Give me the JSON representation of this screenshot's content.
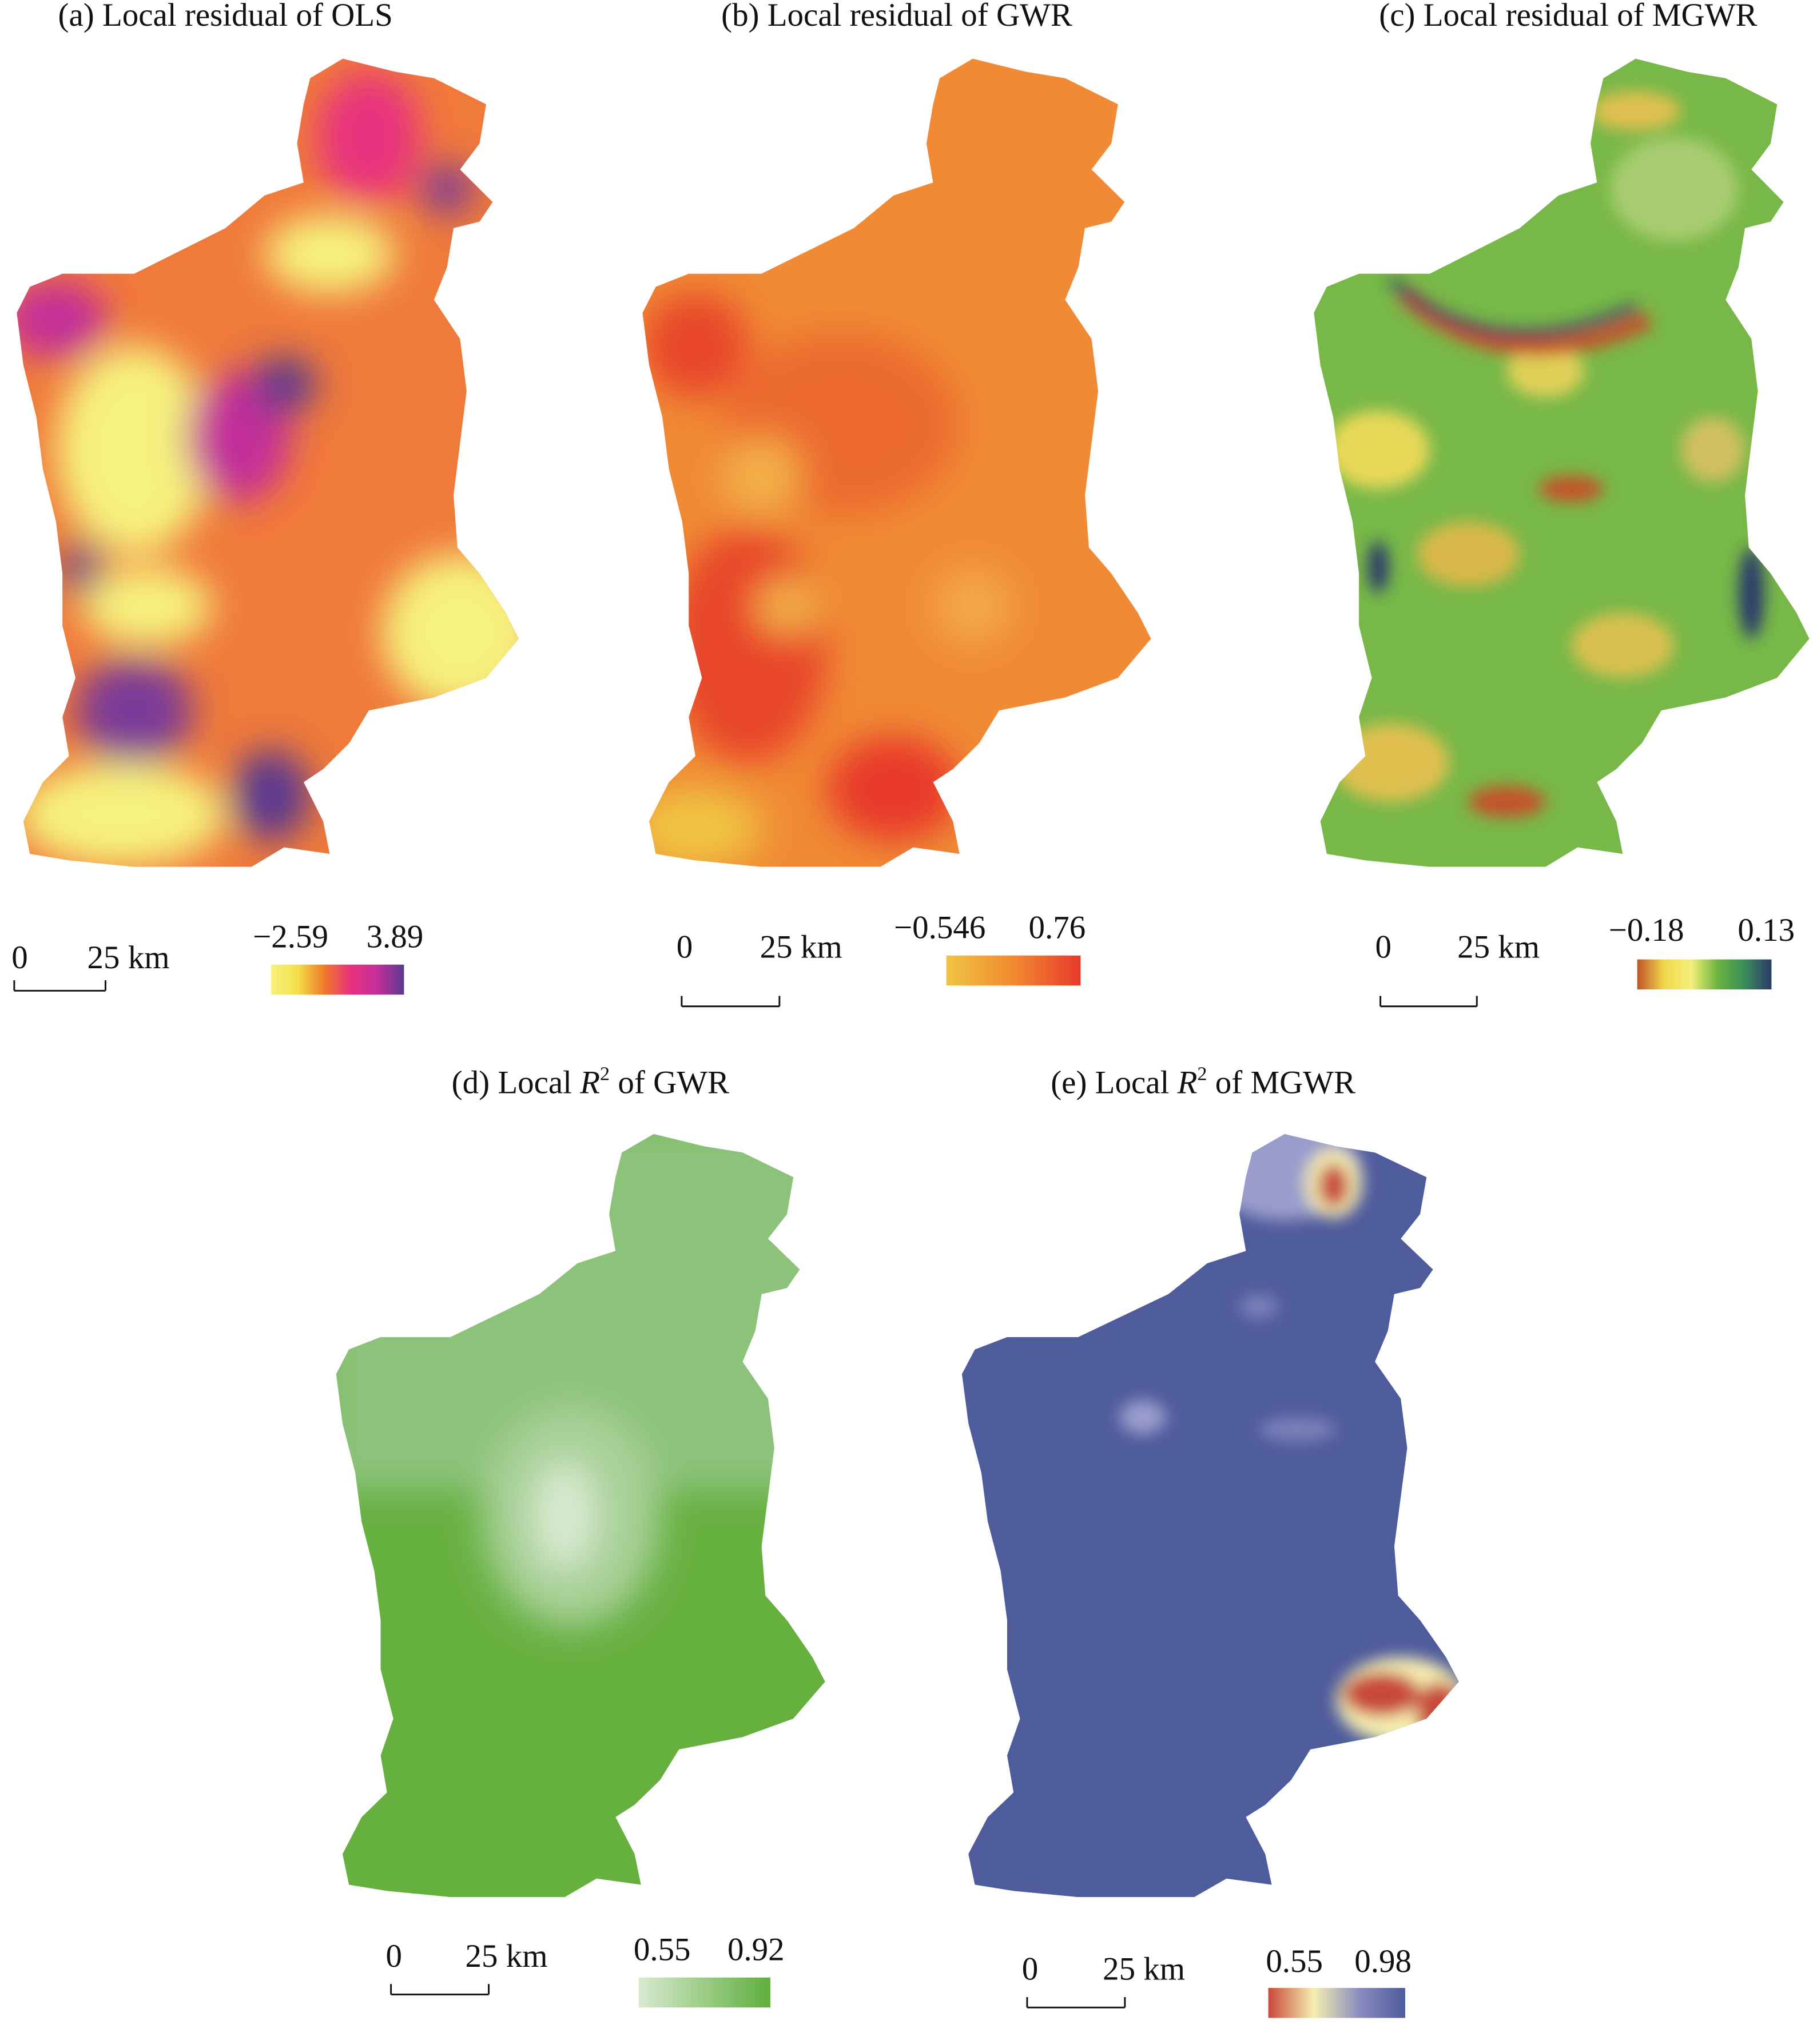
{
  "panels": [
    {
      "title": "(a) Local residual of OLS",
      "scale_bar": {
        "start": "0",
        "end": "25 km"
      },
      "legend": {
        "min": "−2.59",
        "max": "3.89",
        "colors": [
          "#f6f27e",
          "#f3df48",
          "#f07a2a",
          "#e8307f",
          "#c22f9a",
          "#5a3990"
        ]
      }
    },
    {
      "title": "(b) Local residual of GWR",
      "scale_bar": {
        "start": "0",
        "end": "25 km"
      },
      "legend": {
        "min": "−0.546",
        "max": "0.76",
        "colors": [
          "#f0c442",
          "#f28a30",
          "#e8392c"
        ]
      }
    },
    {
      "title": "(c) Local residual of MGWR",
      "scale_bar": {
        "start": "0",
        "end": "25 km"
      },
      "legend": {
        "min": "−0.18",
        "max": "0.13",
        "colors": [
          "#c4522a",
          "#f0d84a",
          "#f5f07a",
          "#6bb43f",
          "#3a8c5a",
          "#2a3a6a"
        ]
      }
    },
    {
      "title": {
        "prefix": "(d) Local ",
        "symbol": "R",
        "superscript": "2",
        "suffix": " of GWR"
      },
      "scale_bar": {
        "start": "0",
        "end": "25 km"
      },
      "legend": {
        "min": "0.55",
        "max": "0.92",
        "colors": [
          "#d8ead0",
          "#5fae3c"
        ]
      }
    },
    {
      "title": {
        "prefix": "(e) Local ",
        "symbol": "R",
        "superscript": "2",
        "suffix": " of MGWR"
      },
      "scale_bar": {
        "start": "0",
        "end": "25 km"
      },
      "legend": {
        "min": "0.55",
        "max": "0.98",
        "colors": [
          "#c84a3a",
          "#f5eeb0",
          "#8a8cc0",
          "#4f5c9c"
        ]
      }
    }
  ]
}
